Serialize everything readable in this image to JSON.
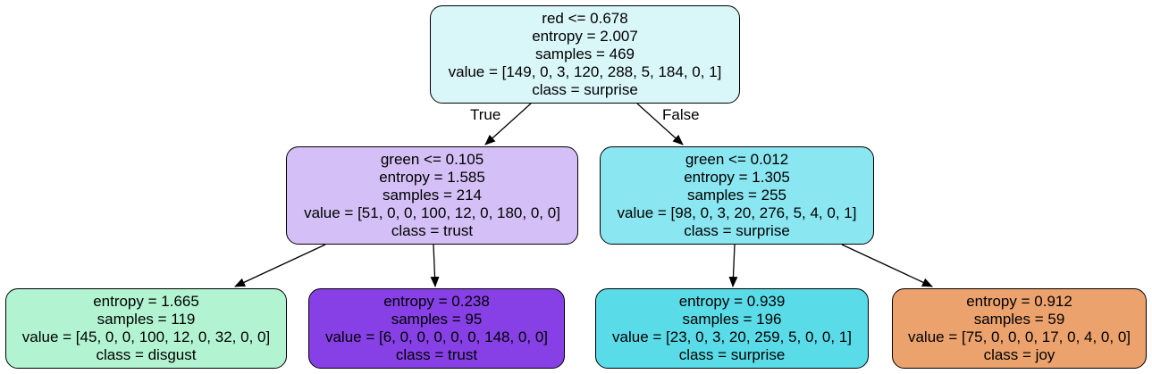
{
  "nodes": {
    "root": {
      "lines": [
        "red <= 0.678",
        "entropy = 2.007",
        "samples = 469",
        "value = [149, 0, 3, 120, 288, 5, 184, 0, 1]",
        "class = surprise"
      ],
      "fill": "#d9f6f9"
    },
    "left": {
      "lines": [
        "green <= 0.105",
        "entropy = 1.585",
        "samples = 214",
        "value = [51, 0, 0, 100, 12, 0, 180, 0, 0]",
        "class = trust"
      ],
      "fill": "#d4c0f6"
    },
    "right": {
      "lines": [
        "green <= 0.012",
        "entropy = 1.305",
        "samples = 255",
        "value = [98, 0, 3, 20, 276, 5, 4, 0, 1]",
        "class = surprise"
      ],
      "fill": "#8ae6f0"
    },
    "leaf1": {
      "lines": [
        "entropy = 1.665",
        "samples = 119",
        "value = [45, 0, 0, 100, 12, 0, 32, 0, 0]",
        "class = disgust"
      ],
      "fill": "#b2f4d2"
    },
    "leaf2": {
      "lines": [
        "entropy = 0.238",
        "samples = 95",
        "value = [6, 0, 0, 0, 0, 0, 148, 0, 0]",
        "class = trust"
      ],
      "fill": "#8640e6"
    },
    "leaf3": {
      "lines": [
        "entropy = 0.939",
        "samples = 196",
        "value = [23, 0, 3, 20, 259, 5, 0, 0, 1]",
        "class = surprise"
      ],
      "fill": "#5adce8"
    },
    "leaf4": {
      "lines": [
        "entropy = 0.912",
        "samples = 59",
        "value = [75, 0, 0, 0, 17, 0, 4, 0, 0]",
        "class = joy"
      ],
      "fill": "#eba26d"
    }
  },
  "edge_labels": {
    "true_label": "True",
    "false_label": "False"
  }
}
